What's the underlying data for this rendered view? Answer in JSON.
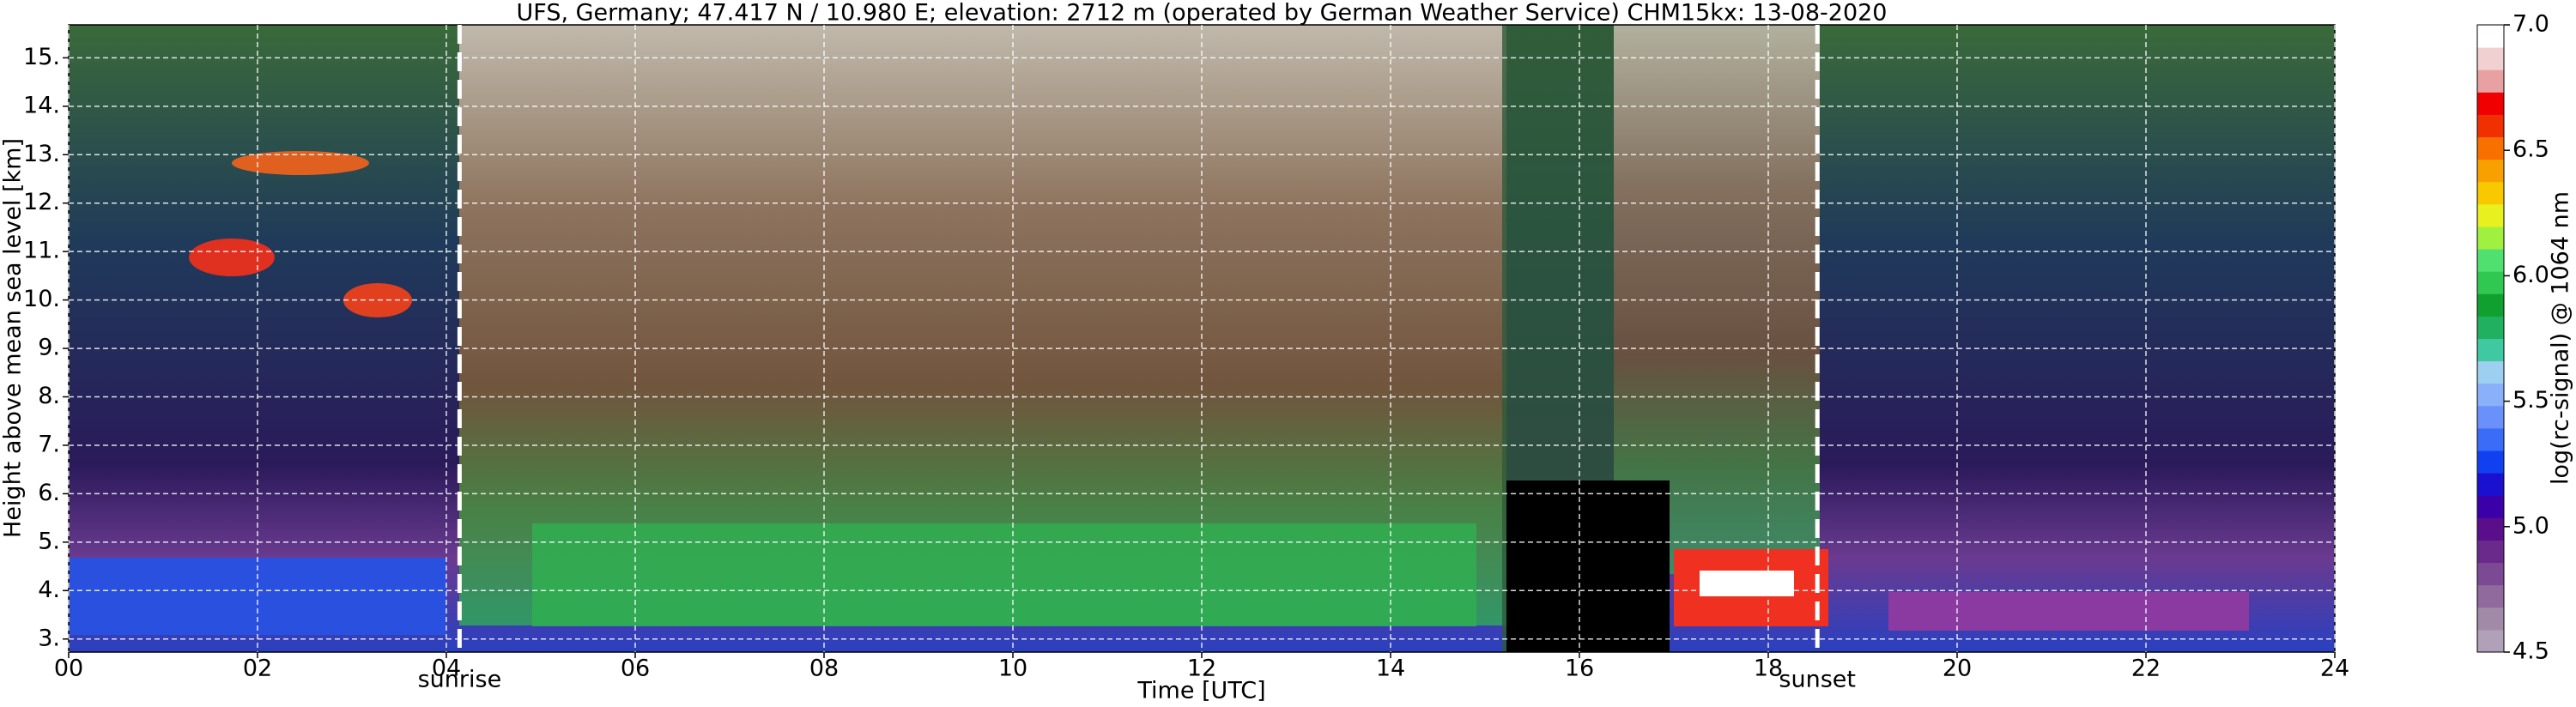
{
  "chart_data": {
    "type": "heatmap",
    "title": "UFS, Germany; 47.417 N / 10.980 E; elevation: 2712 m  (operated by German Weather Service)    CHM15kx: 13-08-2020",
    "x_label": "Time [UTC]",
    "y_label": "Height above mean sea level [km]",
    "xlim": [
      0,
      24
    ],
    "xticks": [
      {
        "value": 0,
        "label": "00"
      },
      {
        "value": 2,
        "label": "02"
      },
      {
        "value": 4,
        "label": "04"
      },
      {
        "value": 6,
        "label": "06"
      },
      {
        "value": 8,
        "label": "08"
      },
      {
        "value": 10,
        "label": "10"
      },
      {
        "value": 12,
        "label": "12"
      },
      {
        "value": 14,
        "label": "14"
      },
      {
        "value": 16,
        "label": "16"
      },
      {
        "value": 18,
        "label": "18"
      },
      {
        "value": 20,
        "label": "20"
      },
      {
        "value": 22,
        "label": "22"
      },
      {
        "value": 24,
        "label": "24"
      }
    ],
    "ylim": [
      2.73,
      15.68
    ],
    "yticks": [
      {
        "value": 3,
        "label": "3."
      },
      {
        "value": 4,
        "label": "4."
      },
      {
        "value": 5,
        "label": "5."
      },
      {
        "value": 6,
        "label": "6."
      },
      {
        "value": 7,
        "label": "7."
      },
      {
        "value": 8,
        "label": "8."
      },
      {
        "value": 9,
        "label": "9."
      },
      {
        "value": 10,
        "label": "10."
      },
      {
        "value": 11,
        "label": "11."
      },
      {
        "value": 12,
        "label": "12."
      },
      {
        "value": 13,
        "label": "13."
      },
      {
        "value": 14,
        "label": "14."
      },
      {
        "value": 15,
        "label": "15."
      }
    ],
    "grid": true,
    "annotations": [
      {
        "text": "sunrise",
        "x": 4.14
      },
      {
        "text": "sunset",
        "x": 18.52
      }
    ],
    "colorbar": {
      "label": "log(rc-signal) @ 1064 nm",
      "clim": [
        4.5,
        7.0
      ],
      "ticks": [
        {
          "value": 4.5,
          "label": "4.5"
        },
        {
          "value": 5.0,
          "label": "5.0"
        },
        {
          "value": 5.5,
          "label": "5.5"
        },
        {
          "value": 6.0,
          "label": "6.0"
        },
        {
          "value": 6.5,
          "label": "6.5"
        },
        {
          "value": 7.0,
          "label": "7.0"
        }
      ],
      "colors": [
        "#b0a0b8",
        "#a08aa8",
        "#906a9c",
        "#7c4a94",
        "#6a2a8c",
        "#5a0e8c",
        "#3c00a8",
        "#1a10d0",
        "#1040f0",
        "#3a6cf8",
        "#6a90fa",
        "#8ab0fa",
        "#9ccff0",
        "#40c8a0",
        "#20b060",
        "#10a030",
        "#30c850",
        "#50e070",
        "#a0f040",
        "#e8f020",
        "#f8c800",
        "#f8a000",
        "#f87000",
        "#f03000",
        "#f00000",
        "#e8a0a0",
        "#f0d0d0",
        "#ffffff"
      ]
    }
  }
}
